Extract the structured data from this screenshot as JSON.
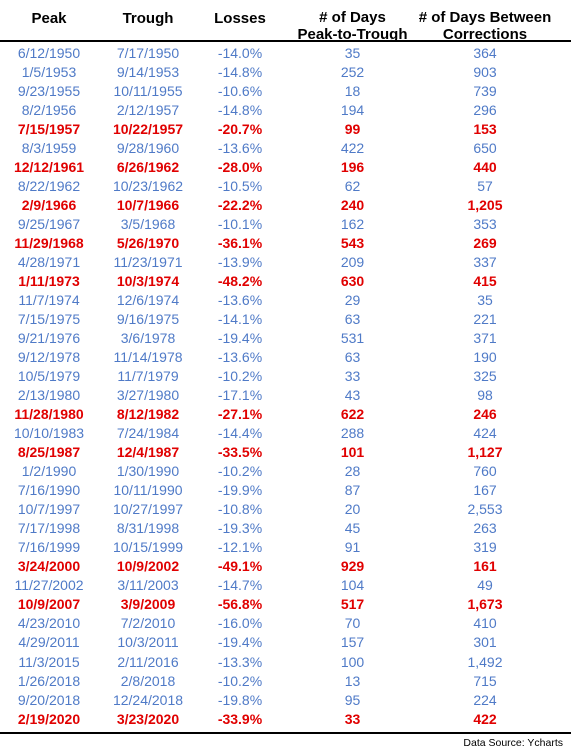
{
  "headers": {
    "peak": "Peak",
    "trough": "Trough",
    "losses": "Losses",
    "days_line1": "# of Days",
    "days_line2": "Peak-to-Trough",
    "between_line1": "# of Days Between",
    "between_line2": "Corrections"
  },
  "rows": [
    {
      "peak": "6/12/1950",
      "trough": "7/17/1950",
      "loss": "-14.0%",
      "days": "35",
      "between": "364",
      "major": false
    },
    {
      "peak": "1/5/1953",
      "trough": "9/14/1953",
      "loss": "-14.8%",
      "days": "252",
      "between": "903",
      "major": false
    },
    {
      "peak": "9/23/1955",
      "trough": "10/11/1955",
      "loss": "-10.6%",
      "days": "18",
      "between": "739",
      "major": false
    },
    {
      "peak": "8/2/1956",
      "trough": "2/12/1957",
      "loss": "-14.8%",
      "days": "194",
      "between": "296",
      "major": false
    },
    {
      "peak": "7/15/1957",
      "trough": "10/22/1957",
      "loss": "-20.7%",
      "days": "99",
      "between": "153",
      "major": true
    },
    {
      "peak": "8/3/1959",
      "trough": "9/28/1960",
      "loss": "-13.6%",
      "days": "422",
      "between": "650",
      "major": false
    },
    {
      "peak": "12/12/1961",
      "trough": "6/26/1962",
      "loss": "-28.0%",
      "days": "196",
      "between": "440",
      "major": true
    },
    {
      "peak": "8/22/1962",
      "trough": "10/23/1962",
      "loss": "-10.5%",
      "days": "62",
      "between": "57",
      "major": false
    },
    {
      "peak": "2/9/1966",
      "trough": "10/7/1966",
      "loss": "-22.2%",
      "days": "240",
      "between": "1,205",
      "major": true
    },
    {
      "peak": "9/25/1967",
      "trough": "3/5/1968",
      "loss": "-10.1%",
      "days": "162",
      "between": "353",
      "major": false
    },
    {
      "peak": "11/29/1968",
      "trough": "5/26/1970",
      "loss": "-36.1%",
      "days": "543",
      "between": "269",
      "major": true
    },
    {
      "peak": "4/28/1971",
      "trough": "11/23/1971",
      "loss": "-13.9%",
      "days": "209",
      "between": "337",
      "major": false
    },
    {
      "peak": "1/11/1973",
      "trough": "10/3/1974",
      "loss": "-48.2%",
      "days": "630",
      "between": "415",
      "major": true
    },
    {
      "peak": "11/7/1974",
      "trough": "12/6/1974",
      "loss": "-13.6%",
      "days": "29",
      "between": "35",
      "major": false
    },
    {
      "peak": "7/15/1975",
      "trough": "9/16/1975",
      "loss": "-14.1%",
      "days": "63",
      "between": "221",
      "major": false
    },
    {
      "peak": "9/21/1976",
      "trough": "3/6/1978",
      "loss": "-19.4%",
      "days": "531",
      "between": "371",
      "major": false
    },
    {
      "peak": "9/12/1978",
      "trough": "11/14/1978",
      "loss": "-13.6%",
      "days": "63",
      "between": "190",
      "major": false
    },
    {
      "peak": "10/5/1979",
      "trough": "11/7/1979",
      "loss": "-10.2%",
      "days": "33",
      "between": "325",
      "major": false
    },
    {
      "peak": "2/13/1980",
      "trough": "3/27/1980",
      "loss": "-17.1%",
      "days": "43",
      "between": "98",
      "major": false
    },
    {
      "peak": "11/28/1980",
      "trough": "8/12/1982",
      "loss": "-27.1%",
      "days": "622",
      "between": "246",
      "major": true
    },
    {
      "peak": "10/10/1983",
      "trough": "7/24/1984",
      "loss": "-14.4%",
      "days": "288",
      "between": "424",
      "major": false
    },
    {
      "peak": "8/25/1987",
      "trough": "12/4/1987",
      "loss": "-33.5%",
      "days": "101",
      "between": "1,127",
      "major": true
    },
    {
      "peak": "1/2/1990",
      "trough": "1/30/1990",
      "loss": "-10.2%",
      "days": "28",
      "between": "760",
      "major": false
    },
    {
      "peak": "7/16/1990",
      "trough": "10/11/1990",
      "loss": "-19.9%",
      "days": "87",
      "between": "167",
      "major": false
    },
    {
      "peak": "10/7/1997",
      "trough": "10/27/1997",
      "loss": "-10.8%",
      "days": "20",
      "between": "2,553",
      "major": false
    },
    {
      "peak": "7/17/1998",
      "trough": "8/31/1998",
      "loss": "-19.3%",
      "days": "45",
      "between": "263",
      "major": false
    },
    {
      "peak": "7/16/1999",
      "trough": "10/15/1999",
      "loss": "-12.1%",
      "days": "91",
      "between": "319",
      "major": false
    },
    {
      "peak": "3/24/2000",
      "trough": "10/9/2002",
      "loss": "-49.1%",
      "days": "929",
      "between": "161",
      "major": true
    },
    {
      "peak": "11/27/2002",
      "trough": "3/11/2003",
      "loss": "-14.7%",
      "days": "104",
      "between": "49",
      "major": false
    },
    {
      "peak": "10/9/2007",
      "trough": "3/9/2009",
      "loss": "-56.8%",
      "days": "517",
      "between": "1,673",
      "major": true
    },
    {
      "peak": "4/23/2010",
      "trough": "7/2/2010",
      "loss": "-16.0%",
      "days": "70",
      "between": "410",
      "major": false
    },
    {
      "peak": "4/29/2011",
      "trough": "10/3/2011",
      "loss": "-19.4%",
      "days": "157",
      "between": "301",
      "major": false
    },
    {
      "peak": "11/3/2015",
      "trough": "2/11/2016",
      "loss": "-13.3%",
      "days": "100",
      "between": "1,492",
      "major": false
    },
    {
      "peak": "1/26/2018",
      "trough": "2/8/2018",
      "loss": "-10.2%",
      "days": "13",
      "between": "715",
      "major": false
    },
    {
      "peak": "9/20/2018",
      "trough": "12/24/2018",
      "loss": "-19.8%",
      "days": "95",
      "between": "224",
      "major": false
    },
    {
      "peak": "2/19/2020",
      "trough": "3/23/2020",
      "loss": "-33.9%",
      "days": "33",
      "between": "422",
      "major": true
    }
  ],
  "source": "Data Source: Ycharts",
  "colors": {
    "minor": "#4f7ac7",
    "major": "#e00000",
    "header": "#000000"
  }
}
